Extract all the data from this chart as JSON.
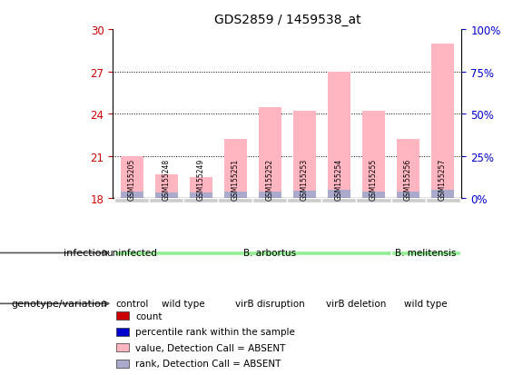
{
  "title": "GDS2859 / 1459538_at",
  "samples": [
    "GSM155205",
    "GSM155248",
    "GSM155249",
    "GSM155251",
    "GSM155252",
    "GSM155253",
    "GSM155254",
    "GSM155255",
    "GSM155256",
    "GSM155257"
  ],
  "value_absent": [
    21.0,
    19.7,
    19.5,
    22.2,
    24.5,
    24.2,
    27.0,
    24.2,
    22.2,
    29.0
  ],
  "rank_absent_height": [
    0.5,
    0.4,
    0.4,
    0.5,
    0.5,
    0.55,
    0.6,
    0.5,
    0.5,
    0.6
  ],
  "ylim_left": [
    18,
    30
  ],
  "ylim_right": [
    0,
    100
  ],
  "yticks_left": [
    18,
    21,
    24,
    27,
    30
  ],
  "yticks_right": [
    0,
    25,
    50,
    75,
    100
  ],
  "yticklabels_right": [
    "0%",
    "25%",
    "50%",
    "75%",
    "100%"
  ],
  "infection_labels": [
    {
      "label": "uninfected",
      "start": 0,
      "end": 1
    },
    {
      "label": "B. arbortus",
      "start": 1,
      "end": 8
    },
    {
      "label": "B. melitensis",
      "start": 8,
      "end": 10
    }
  ],
  "genotype_groups": [
    {
      "label": "control",
      "start": 0,
      "end": 1
    },
    {
      "label": "wild type",
      "start": 1,
      "end": 3
    },
    {
      "label": "virB disruption",
      "start": 3,
      "end": 6
    },
    {
      "label": "virB deletion",
      "start": 6,
      "end": 8
    },
    {
      "label": "wild type",
      "start": 8,
      "end": 10
    }
  ],
  "bar_color_absent_value": "#ffb6c1",
  "bar_color_absent_rank": "#aaaacc",
  "base_value": 18,
  "bar_width": 0.65,
  "infection_color": "#90ee90",
  "genotype_color": "#ee82ee",
  "sample_box_color": "#cccccc",
  "left_tick_color": "#cc0000",
  "right_tick_color": "#0000cc",
  "legend_items": [
    {
      "color": "#cc0000",
      "label": "count"
    },
    {
      "color": "#0000cc",
      "label": "percentile rank within the sample"
    },
    {
      "color": "#ffb6c1",
      "label": "value, Detection Call = ABSENT"
    },
    {
      "color": "#aaaacc",
      "label": "rank, Detection Call = ABSENT"
    }
  ]
}
